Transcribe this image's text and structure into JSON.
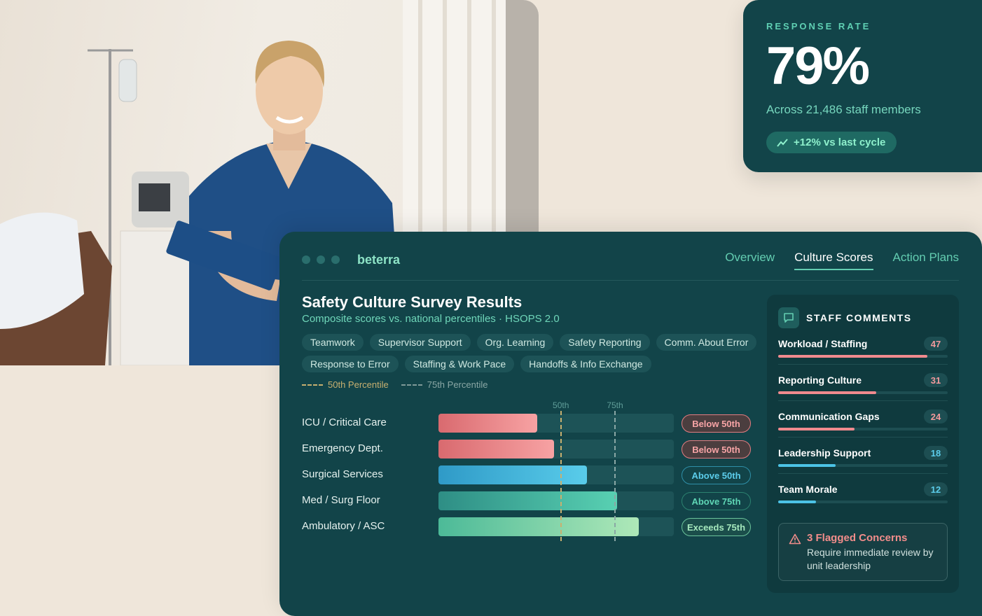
{
  "photo": {
    "alt": "",
    "icon": "nurse-photo"
  },
  "response_rate": {
    "label": "RESPONSE RATE",
    "value": "79%",
    "subtext": "Across 21,486 staff members",
    "trend": "+12% vs last cycle",
    "trend_icon": "trend-up-icon"
  },
  "app": {
    "brand": "beterra",
    "tabs": [
      {
        "label": "Overview",
        "active": false
      },
      {
        "label": "Culture Scores",
        "active": true
      },
      {
        "label": "Action Plans",
        "active": false
      }
    ]
  },
  "survey": {
    "title": "Safety Culture Survey Results",
    "subtitle": "Composite scores vs. national percentiles · HSOPS 2.0",
    "chips": [
      "Teamwork",
      "Supervisor Support",
      "Org. Learning",
      "Safety Reporting",
      "Comm. About Error",
      "Response to Error",
      "Staffing & Work Pace",
      "Handoffs & Info Exchange"
    ],
    "legend": {
      "p50": "50th Percentile",
      "p75": "75th Percentile"
    }
  },
  "chart_data": {
    "type": "bar",
    "orientation": "horizontal",
    "markers": [
      {
        "label": "50th",
        "value": 52,
        "color": "#c8b070"
      },
      {
        "label": "75th",
        "value": 75,
        "color": "#8aa7a5"
      }
    ],
    "xlim": [
      0,
      100
    ],
    "rows": [
      {
        "label": "ICU / Critical Care",
        "value": 42,
        "status": "Below 50th",
        "tone": "below"
      },
      {
        "label": "Emergency Dept.",
        "value": 49,
        "status": "Below 50th",
        "tone": "below"
      },
      {
        "label": "Surgical Services",
        "value": 63,
        "status": "Above 50th",
        "tone": "above50"
      },
      {
        "label": "Med / Surg Floor",
        "value": 76,
        "status": "Above 75th",
        "tone": "above75"
      },
      {
        "label": "Ambulatory / ASC",
        "value": 85,
        "status": "Exceeds 75th",
        "tone": "exceeds"
      }
    ]
  },
  "comments": {
    "title": "STAFF COMMENTS",
    "icon": "chat-icon",
    "max": 47,
    "items": [
      {
        "name": "Workload / Staffing",
        "count": 47,
        "color": "#f08a8e",
        "count_color": "#f29a9c"
      },
      {
        "name": "Reporting Culture",
        "count": 31,
        "color": "#f08a8e",
        "count_color": "#f29a9c"
      },
      {
        "name": "Communication Gaps",
        "count": 24,
        "color": "#f08a8e",
        "count_color": "#f29a9c"
      },
      {
        "name": "Leadership Support",
        "count": 18,
        "color": "#4cc3e6",
        "count_color": "#5ccdeb"
      },
      {
        "name": "Team Morale",
        "count": 12,
        "color": "#4cc3e6",
        "count_color": "#5ccdeb"
      }
    ],
    "flag": {
      "icon": "warning-icon",
      "title": "3 Flagged Concerns",
      "body": "Require immediate review by unit leadership"
    }
  },
  "colors": {
    "panel": "#124449",
    "accent": "#63cdb1",
    "below": "#f08a8e",
    "above50": "#4cc3e6",
    "above75": "#4fc9ab",
    "exceeds": "#9ee3b5"
  }
}
